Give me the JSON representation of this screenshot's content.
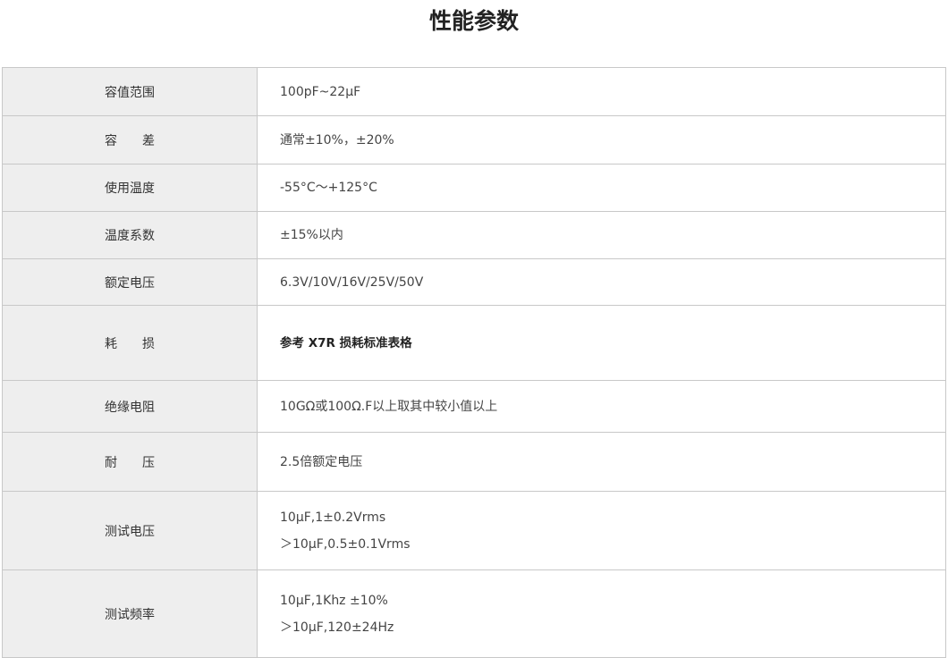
{
  "title": "性能参数",
  "rows": [
    {
      "label": "容值范围",
      "value": [
        "100pF~22μF"
      ]
    },
    {
      "label": "容　　差",
      "value": [
        "通常±10%，±20%"
      ]
    },
    {
      "label": "使用温度",
      "value": [
        " -55°C～+125°C"
      ]
    },
    {
      "label": "温度系数",
      "value": [
        "±15%以内"
      ]
    },
    {
      "label": "额定电压",
      "value": [
        "6.3V/10V/16V/25V/50V"
      ]
    },
    {
      "label": "耗　　损",
      "value": [
        "参考 X7R 损耗标准表格"
      ]
    },
    {
      "label": "绝缘电阻",
      "value": [
        "10GΩ或100Ω.F以上取其中较小值以上"
      ]
    },
    {
      "label": "耐　　压",
      "value": [
        "2.5倍额定电压"
      ]
    },
    {
      "label": "测试电压",
      "value": [
        "10μF,1±0.2Vrms",
        "＞10μF,0.5±0.1Vrms"
      ]
    },
    {
      "label": "测试频率",
      "value": [
        "10μF,1Khz ±10%",
        "＞10μF,120±24Hz"
      ]
    }
  ]
}
